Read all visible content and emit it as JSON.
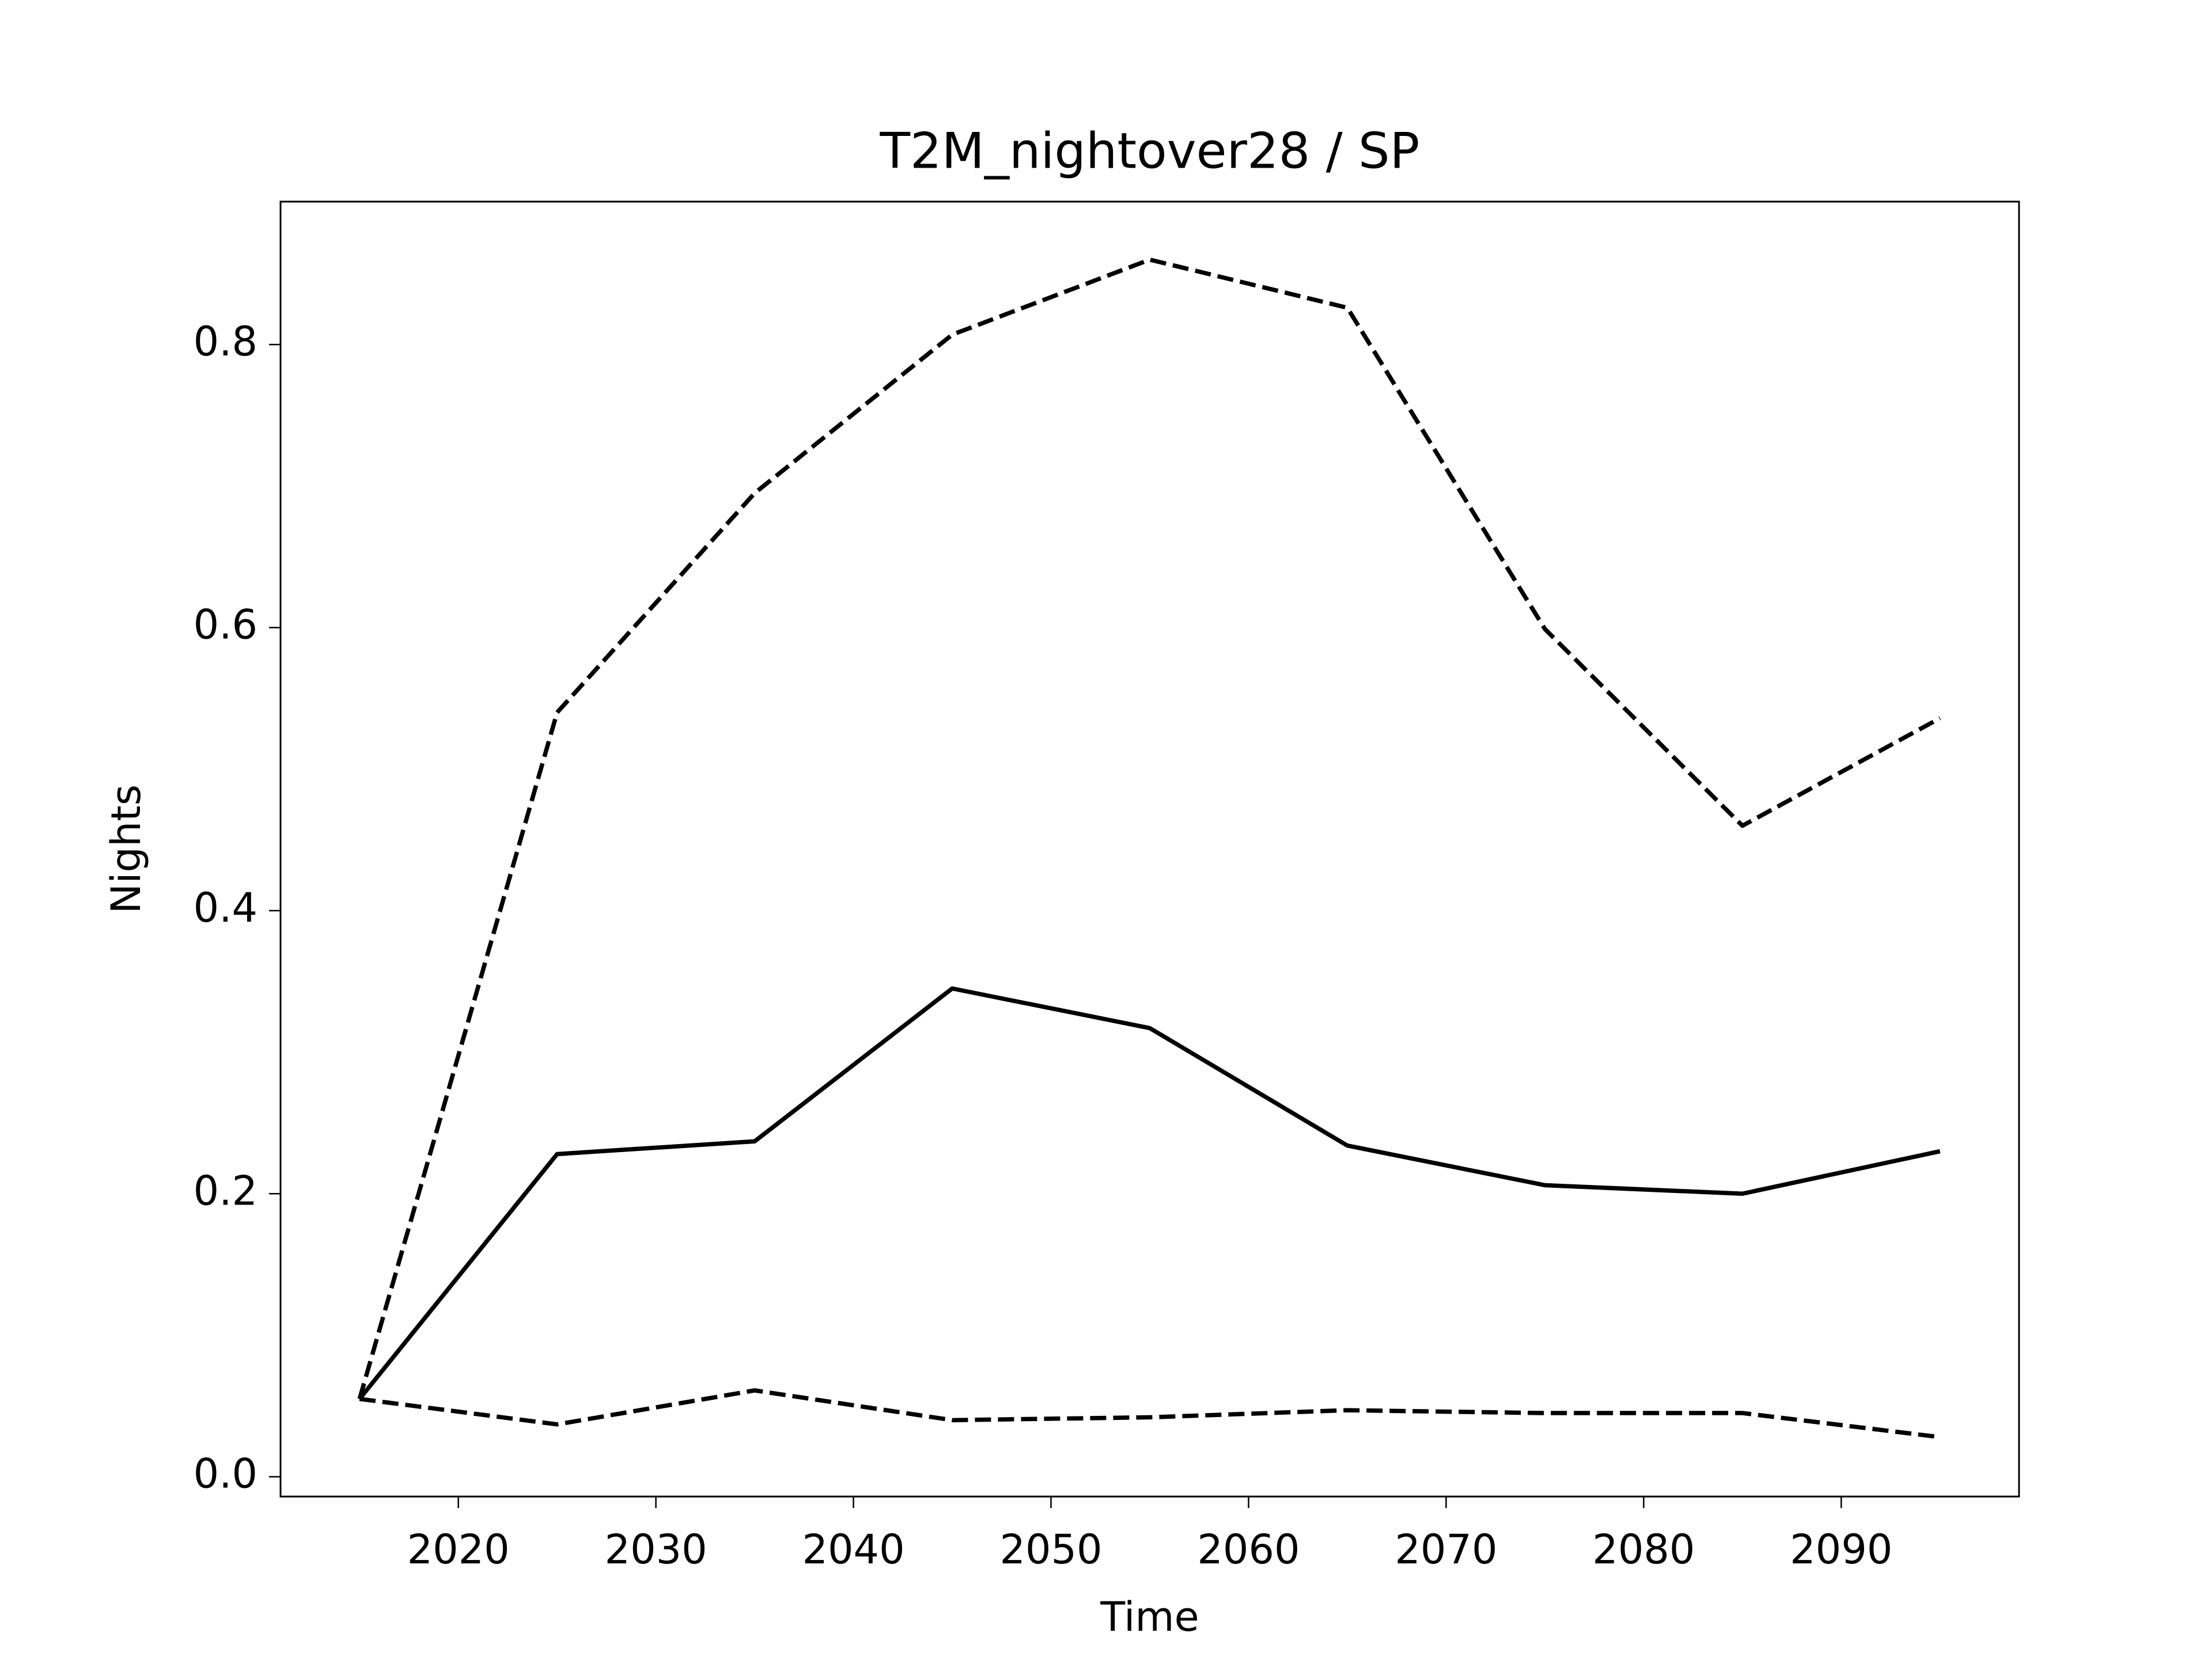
{
  "chart_data": {
    "type": "line",
    "title": "T2M_nightover28 / SP",
    "x_label": "Time",
    "y_label": "Nights",
    "x": [
      2015,
      2025,
      2035,
      2045,
      2055,
      2065,
      2075,
      2085,
      2095
    ],
    "series": [
      {
        "color": "#000000",
        "linestyle": "solid",
        "values": [
          0.055,
          0.228,
          0.237,
          0.345,
          0.317,
          0.234,
          0.206,
          0.2,
          0.23
        ]
      },
      {
        "color": "#000000",
        "linestyle": "dashed",
        "values": [
          0.055,
          0.54,
          0.695,
          0.807,
          0.86,
          0.826,
          0.599,
          0.46,
          0.536
        ]
      },
      {
        "color": "#000000",
        "linestyle": "dashed",
        "values": [
          0.055,
          0.037,
          0.061,
          0.04,
          0.042,
          0.047,
          0.045,
          0.045,
          0.028
        ]
      }
    ],
    "xlim": [
      2011,
      2099
    ],
    "xticks": [
      2020,
      2030,
      2040,
      2050,
      2060,
      2070,
      2080,
      2090
    ],
    "ylim": [
      -0.014,
      0.901
    ],
    "yticks": [
      {
        "value": 0,
        "label": "0.0"
      },
      {
        "value": 0.2,
        "label": "0.2"
      },
      {
        "value": 0.4,
        "label": "0.4"
      },
      {
        "value": 0.6,
        "label": "0.6"
      },
      {
        "value": 0.8,
        "label": "0.8"
      }
    ],
    "grid": false
  }
}
